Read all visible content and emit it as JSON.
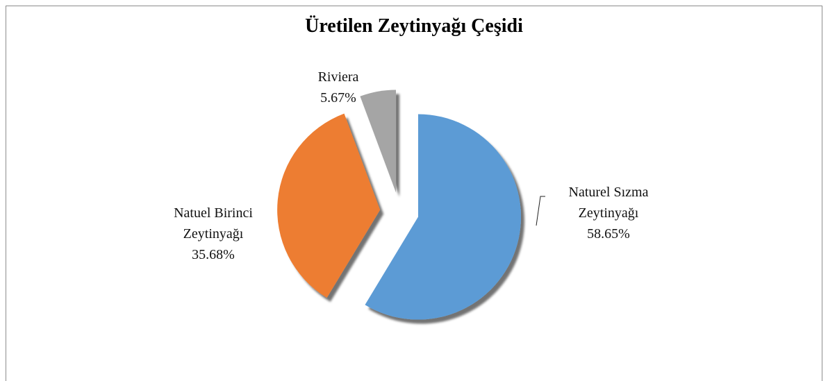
{
  "chart_data": {
    "type": "pie",
    "title": "Üretilen Zeytinyağı Çeşidi",
    "categories": [
      "Naturel Sızma Zeytinyağı",
      "Natuel Birinci Zeytinyağı",
      "Riviera"
    ],
    "values": [
      58.65,
      35.68,
      5.67
    ],
    "value_labels": [
      "58.65%",
      "35.68%",
      "5.67%"
    ],
    "colors": [
      "#5b9bd5",
      "#ed7d31",
      "#a5a5a5"
    ]
  }
}
